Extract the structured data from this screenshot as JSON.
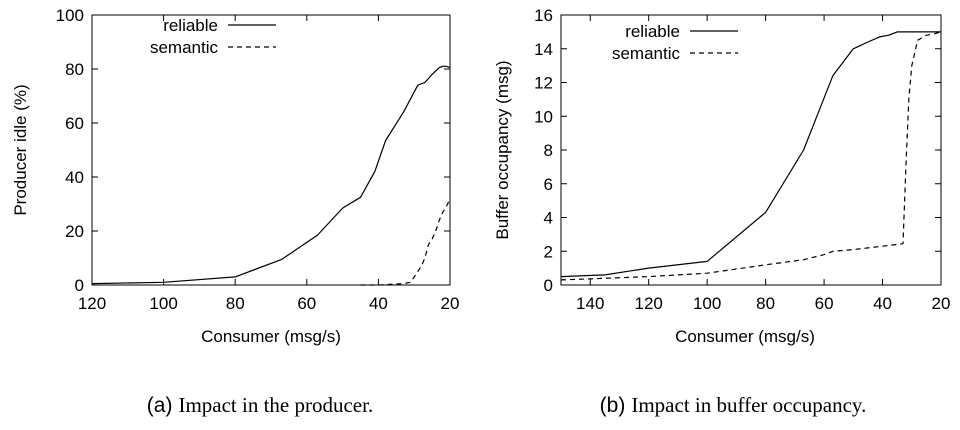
{
  "chart_data": [
    {
      "type": "line",
      "caption_letter": "(a)",
      "caption": "Impact in the producer.",
      "xlabel": "Consumer (msg/s)",
      "ylabel": "Producer idle (%)",
      "xlim": [
        120,
        20
      ],
      "ylim": [
        0,
        100
      ],
      "xticks": [
        120,
        100,
        80,
        60,
        40,
        20
      ],
      "yticks": [
        0,
        20,
        40,
        60,
        80,
        100
      ],
      "legend_position": "top-left",
      "series": [
        {
          "name": "reliable",
          "style": "solid",
          "x": [
            120,
            100,
            80,
            67,
            57,
            50,
            45,
            41,
            38,
            33,
            29,
            27,
            25,
            23,
            22,
            21,
            20
          ],
          "y": [
            0.5,
            1,
            3,
            9.5,
            18.5,
            28.5,
            32.5,
            42,
            53.5,
            64,
            74,
            75,
            78,
            80.5,
            81,
            81,
            80.5
          ]
        },
        {
          "name": "semantic",
          "style": "dashed",
          "x": [
            45,
            40,
            36,
            33,
            31,
            30,
            28,
            27,
            26,
            25,
            24,
            23,
            22,
            21,
            20
          ],
          "y": [
            0,
            0,
            0.3,
            0.5,
            1,
            3,
            7,
            10,
            15,
            17,
            20,
            24,
            27,
            29,
            32
          ]
        }
      ]
    },
    {
      "type": "line",
      "caption_letter": "(b)",
      "caption": "Impact in buffer occupancy.",
      "xlabel": "Consumer (msg/s)",
      "ylabel": "Buffer occupancy (msg)",
      "xlim": [
        150,
        20
      ],
      "ylim": [
        0,
        16
      ],
      "xticks": [
        140,
        120,
        100,
        80,
        60,
        40,
        20
      ],
      "yticks": [
        0,
        2,
        4,
        6,
        8,
        10,
        12,
        14,
        16
      ],
      "legend_position": "top-left",
      "series": [
        {
          "name": "reliable",
          "style": "solid",
          "x": [
            150,
            135,
            120,
            100,
            80,
            67,
            57,
            50,
            45,
            41,
            38,
            35,
            30,
            25,
            20
          ],
          "y": [
            0.5,
            0.6,
            1.0,
            1.4,
            4.3,
            8.0,
            12.4,
            14.0,
            14.4,
            14.7,
            14.8,
            15.0,
            15.0,
            15.0,
            15.0
          ]
        },
        {
          "name": "semantic",
          "style": "dashed",
          "x": [
            150,
            135,
            120,
            100,
            80,
            67,
            60,
            57,
            50,
            45,
            40,
            33,
            32,
            31,
            30,
            28,
            25,
            22,
            20
          ],
          "y": [
            0.3,
            0.4,
            0.5,
            0.7,
            1.2,
            1.5,
            1.8,
            2.0,
            2.1,
            2.2,
            2.3,
            2.45,
            7.0,
            11.0,
            13.0,
            14.5,
            14.8,
            14.9,
            15.0
          ]
        }
      ]
    }
  ]
}
